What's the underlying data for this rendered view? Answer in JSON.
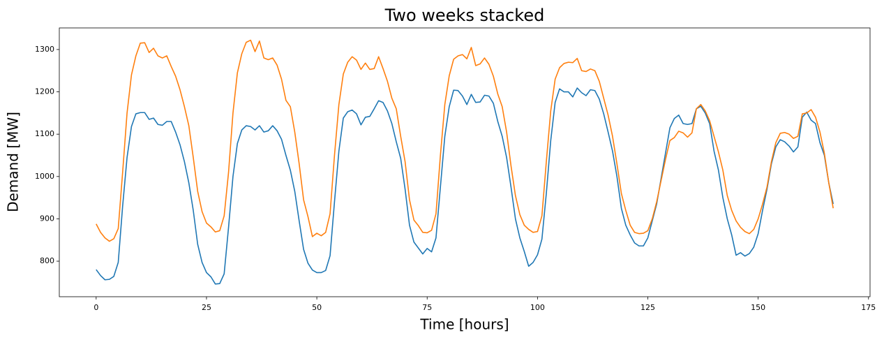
{
  "chart_data": {
    "type": "line",
    "title": "Two weeks stacked",
    "x_label": "Time [hours]",
    "y_label": "Demand [MW]",
    "x": [
      0,
      1,
      2,
      3,
      4,
      5,
      6,
      7,
      8,
      9,
      10,
      11,
      12,
      13,
      14,
      15,
      16,
      17,
      18,
      19,
      20,
      21,
      22,
      23,
      24,
      25,
      26,
      27,
      28,
      29,
      30,
      31,
      32,
      33,
      34,
      35,
      36,
      37,
      38,
      39,
      40,
      41,
      42,
      43,
      44,
      45,
      46,
      47,
      48,
      49,
      50,
      51,
      52,
      53,
      54,
      55,
      56,
      57,
      58,
      59,
      60,
      61,
      62,
      63,
      64,
      65,
      66,
      67,
      68,
      69,
      70,
      71,
      72,
      73,
      74,
      75,
      76,
      77,
      78,
      79,
      80,
      81,
      82,
      83,
      84,
      85,
      86,
      87,
      88,
      89,
      90,
      91,
      92,
      93,
      94,
      95,
      96,
      97,
      98,
      99,
      100,
      101,
      102,
      103,
      104,
      105,
      106,
      107,
      108,
      109,
      110,
      111,
      112,
      113,
      114,
      115,
      116,
      117,
      118,
      119,
      120,
      121,
      122,
      123,
      124,
      125,
      126,
      127,
      128,
      129,
      130,
      131,
      132,
      133,
      134,
      135,
      136,
      137,
      138,
      139,
      140,
      141,
      142,
      143,
      144,
      145,
      146,
      147,
      148,
      149,
      150,
      151,
      152,
      153,
      154,
      155,
      156,
      157,
      158,
      159,
      160,
      161,
      162,
      163,
      164,
      165,
      166,
      167
    ],
    "series": [
      {
        "color": "#1f77b4",
        "values": [
          780,
          766,
          756,
          757,
          764,
          797,
          930,
          1045,
          1118,
          1148,
          1151,
          1151,
          1135,
          1138,
          1123,
          1121,
          1130,
          1130,
          1105,
          1075,
          1035,
          985,
          920,
          840,
          797,
          773,
          763,
          746,
          747,
          770,
          880,
          1000,
          1078,
          1110,
          1120,
          1118,
          1110,
          1120,
          1105,
          1108,
          1120,
          1108,
          1088,
          1050,
          1015,
          965,
          895,
          828,
          795,
          779,
          773,
          773,
          778,
          813,
          940,
          1060,
          1138,
          1153,
          1157,
          1148,
          1122,
          1140,
          1142,
          1160,
          1179,
          1175,
          1155,
          1125,
          1082,
          1043,
          970,
          885,
          845,
          831,
          817,
          830,
          822,
          855,
          975,
          1095,
          1165,
          1204,
          1203,
          1190,
          1170,
          1194,
          1175,
          1176,
          1192,
          1190,
          1173,
          1130,
          1095,
          1045,
          975,
          900,
          855,
          823,
          788,
          797,
          815,
          852,
          960,
          1085,
          1175,
          1207,
          1200,
          1200,
          1188,
          1209,
          1198,
          1191,
          1205,
          1203,
          1183,
          1148,
          1105,
          1060,
          1000,
          925,
          885,
          862,
          843,
          836,
          836,
          855,
          895,
          935,
          995,
          1055,
          1115,
          1137,
          1145,
          1125,
          1123,
          1125,
          1160,
          1166,
          1150,
          1125,
          1060,
          1015,
          950,
          900,
          862,
          814,
          820,
          812,
          818,
          833,
          865,
          920,
          970,
          1030,
          1070,
          1087,
          1082,
          1072,
          1058,
          1070,
          1140,
          1152,
          1133,
          1125,
          1080,
          1050,
          985,
          935
        ]
      },
      {
        "color": "#ff7f0e",
        "values": [
          888,
          868,
          855,
          847,
          853,
          877,
          1010,
          1150,
          1240,
          1285,
          1315,
          1316,
          1293,
          1303,
          1285,
          1280,
          1285,
          1260,
          1237,
          1205,
          1165,
          1120,
          1045,
          965,
          917,
          890,
          881,
          869,
          872,
          907,
          1010,
          1150,
          1245,
          1290,
          1317,
          1322,
          1295,
          1320,
          1280,
          1276,
          1280,
          1263,
          1230,
          1180,
          1165,
          1105,
          1030,
          945,
          905,
          858,
          866,
          860,
          868,
          912,
          1050,
          1170,
          1242,
          1270,
          1283,
          1275,
          1253,
          1268,
          1253,
          1255,
          1283,
          1255,
          1225,
          1185,
          1160,
          1095,
          1035,
          945,
          897,
          884,
          868,
          867,
          873,
          912,
          1050,
          1170,
          1238,
          1277,
          1285,
          1288,
          1278,
          1305,
          1262,
          1266,
          1280,
          1265,
          1237,
          1195,
          1165,
          1105,
          1025,
          955,
          910,
          885,
          875,
          868,
          870,
          907,
          1035,
          1155,
          1230,
          1257,
          1267,
          1270,
          1269,
          1279,
          1250,
          1248,
          1254,
          1250,
          1225,
          1185,
          1145,
          1095,
          1030,
          960,
          920,
          885,
          868,
          865,
          866,
          872,
          900,
          940,
          990,
          1040,
          1085,
          1092,
          1107,
          1103,
          1093,
          1103,
          1160,
          1170,
          1155,
          1132,
          1095,
          1058,
          1015,
          955,
          920,
          895,
          880,
          870,
          865,
          875,
          900,
          935,
          975,
          1035,
          1080,
          1102,
          1104,
          1100,
          1090,
          1095,
          1148,
          1150,
          1158,
          1140,
          1105,
          1055,
          985,
          925
        ]
      }
    ],
    "xlim": [
      -8.35,
      175.35
    ],
    "xticks": [
      0,
      25,
      50,
      75,
      100,
      125,
      150,
      175
    ],
    "ylim": [
      716,
      1351
    ],
    "yticks": [
      800,
      900,
      1000,
      1100,
      1200,
      1300
    ],
    "grid": false
  }
}
